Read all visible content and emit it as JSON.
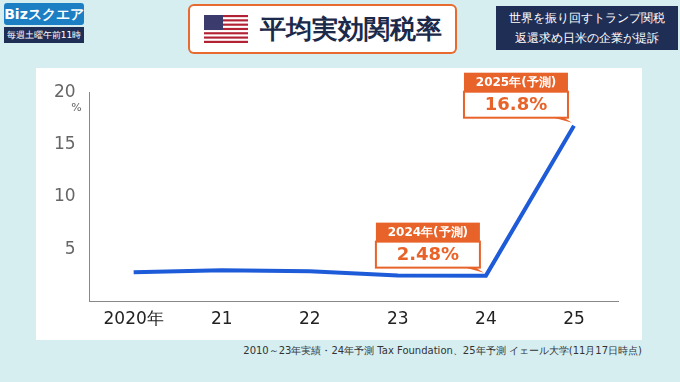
{
  "header": {
    "logo": "Bizスクエア",
    "schedule": "毎週土曜午前11時",
    "topic": [
      "世界を振り回すトランプ関税",
      "返還求め日米の企業が提訴"
    ]
  },
  "chart_data": {
    "type": "line",
    "title": "平均実効関税率",
    "categories": [
      "2020年",
      "21",
      "22",
      "23",
      "24",
      "25"
    ],
    "values": [
      2.8,
      3.0,
      2.9,
      2.5,
      2.48,
      16.8
    ],
    "color": "#1e5bd8",
    "ylim": [
      0,
      20
    ],
    "yticks": [
      5,
      10,
      15,
      20
    ],
    "ylabel": "%",
    "grid": false,
    "annotations": [
      {
        "category": "24",
        "value": 2.48,
        "label": "2024年(予測)",
        "value_label": "2.48%"
      },
      {
        "category": "25",
        "value": 16.8,
        "label": "2025年(予測)",
        "value_label": "16.8%"
      }
    ],
    "source": "2010～23年実績・24年予測 Tax Foundation、25年予測 イェール大学(11月17日時点)"
  }
}
